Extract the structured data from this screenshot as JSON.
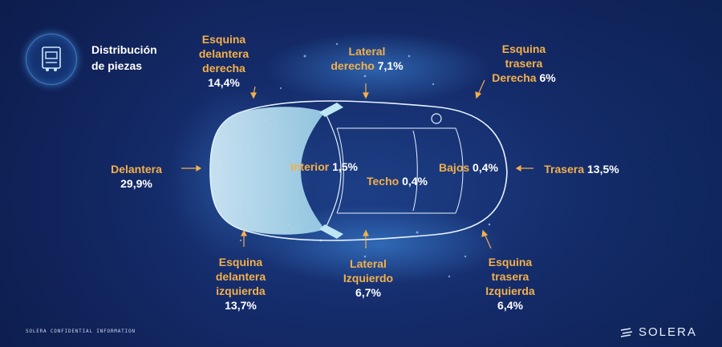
{
  "title_line1": "Distribución",
  "title_line2": "de piezas",
  "badge_icon": "car-service-icon",
  "parts": {
    "delantera": {
      "name": "Delantera",
      "pct": "29,9%"
    },
    "esquina_del_der": {
      "name1": "Esquina",
      "name2": "delantera",
      "name3": "derecha",
      "pct": "14,4%"
    },
    "lateral_der": {
      "name1": "Lateral",
      "name2": "derecho",
      "pct": "7,1%"
    },
    "esquina_tras_der": {
      "name1": "Esquina",
      "name2": "trasera",
      "name3": "Derecha",
      "pct": "6%"
    },
    "interior": {
      "name": "Interior",
      "pct": "1,5%"
    },
    "techo": {
      "name": "Techo",
      "pct": "0,4%"
    },
    "bajos": {
      "name": "Bajos",
      "pct": "0,4%"
    },
    "trasera": {
      "name": "Trasera",
      "pct": "13,5%"
    },
    "esquina_del_izq": {
      "name1": "Esquina",
      "name2": "delantera",
      "name3": "izquierda",
      "pct": "13,7%"
    },
    "lateral_izq": {
      "name1": "Lateral",
      "name2": "Izquierdo",
      "pct": "6,7%"
    },
    "esquina_tras_izq": {
      "name1": "Esquina",
      "name2": "trasera",
      "name3": "Izquierda",
      "pct": "6,4%"
    }
  },
  "footer": "SOLERA CONFIDENTIAL INFORMATION",
  "logo_text": "SOLERA",
  "colors": {
    "accent": "#f3b04a",
    "arrow": "#f3b04a",
    "car_front": "#bfe6f5",
    "background": "#152c6b"
  }
}
